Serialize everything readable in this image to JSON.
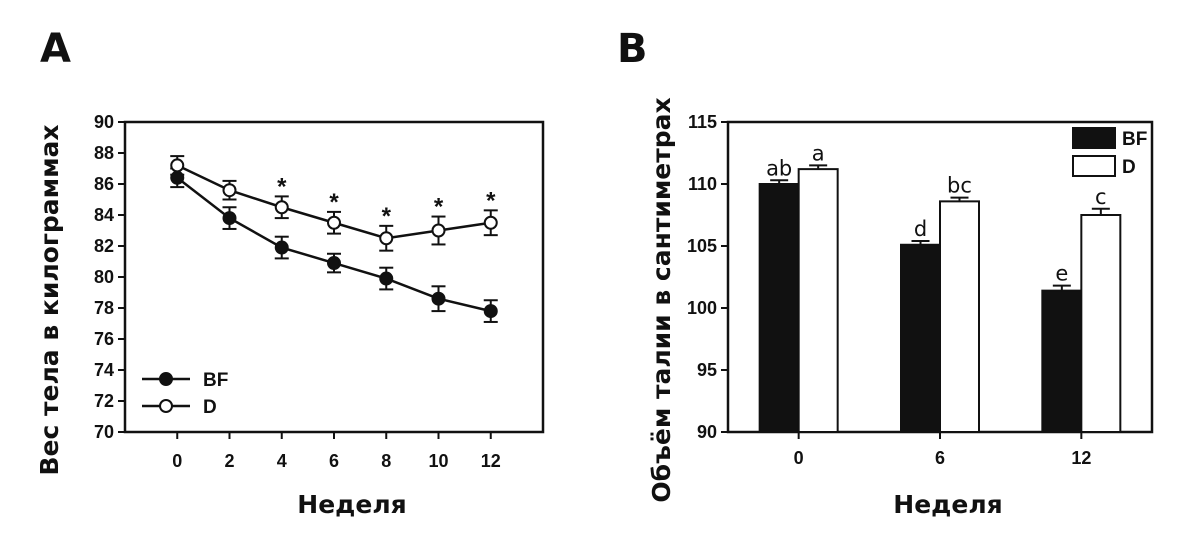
{
  "chart_data": [
    {
      "panel": "A",
      "type": "line",
      "xlabel": "Неделя",
      "ylabel": "Вес тела в килограммах",
      "x": [
        0,
        2,
        4,
        6,
        8,
        10,
        12
      ],
      "xlim": [
        -2,
        14
      ],
      "ylim": [
        70,
        90
      ],
      "yticks": [
        70,
        72,
        74,
        76,
        78,
        80,
        82,
        84,
        86,
        88,
        90
      ],
      "legend_position": "bottom-left",
      "series": [
        {
          "name": "BF",
          "marker": "filled-circle",
          "values": [
            86.4,
            83.8,
            81.9,
            80.9,
            79.9,
            78.6,
            77.8
          ],
          "errors": [
            0.6,
            0.7,
            0.7,
            0.6,
            0.7,
            0.8,
            0.7
          ]
        },
        {
          "name": "D",
          "marker": "open-circle",
          "values": [
            87.2,
            85.6,
            84.5,
            83.5,
            82.5,
            83.0,
            83.5
          ],
          "errors": [
            0.6,
            0.6,
            0.7,
            0.7,
            0.8,
            0.9,
            0.8
          ]
        }
      ],
      "annotations": [
        {
          "x": 4,
          "text": "*"
        },
        {
          "x": 6,
          "text": "*"
        },
        {
          "x": 8,
          "text": "*"
        },
        {
          "x": 10,
          "text": "*"
        },
        {
          "x": 12,
          "text": "*"
        }
      ]
    },
    {
      "panel": "B",
      "type": "bar",
      "xlabel": "Неделя",
      "ylabel": "Объём талии в сантиметрах",
      "categories": [
        "0",
        "6",
        "12"
      ],
      "ylim": [
        90,
        115
      ],
      "yticks": [
        90,
        95,
        100,
        105,
        110,
        115
      ],
      "ytick_labels": [
        "90",
        "95",
        "100",
        "105",
        "110",
        "115"
      ],
      "legend_position": "top-right",
      "series": [
        {
          "name": "BF",
          "fill": "filled",
          "values": [
            110.0,
            105.1,
            101.4
          ],
          "errors": [
            0.3,
            0.3,
            0.4
          ],
          "labels": [
            "ab",
            "d",
            "e"
          ]
        },
        {
          "name": "D",
          "fill": "open",
          "values": [
            111.2,
            108.6,
            107.5
          ],
          "errors": [
            0.3,
            0.3,
            0.5
          ],
          "labels": [
            "a",
            "bc",
            "c"
          ]
        }
      ]
    }
  ],
  "panels": {
    "A": {
      "letter": "A"
    },
    "B": {
      "letter": "B"
    }
  },
  "colors": {
    "ink": "#111111",
    "background": "#ffffff"
  }
}
